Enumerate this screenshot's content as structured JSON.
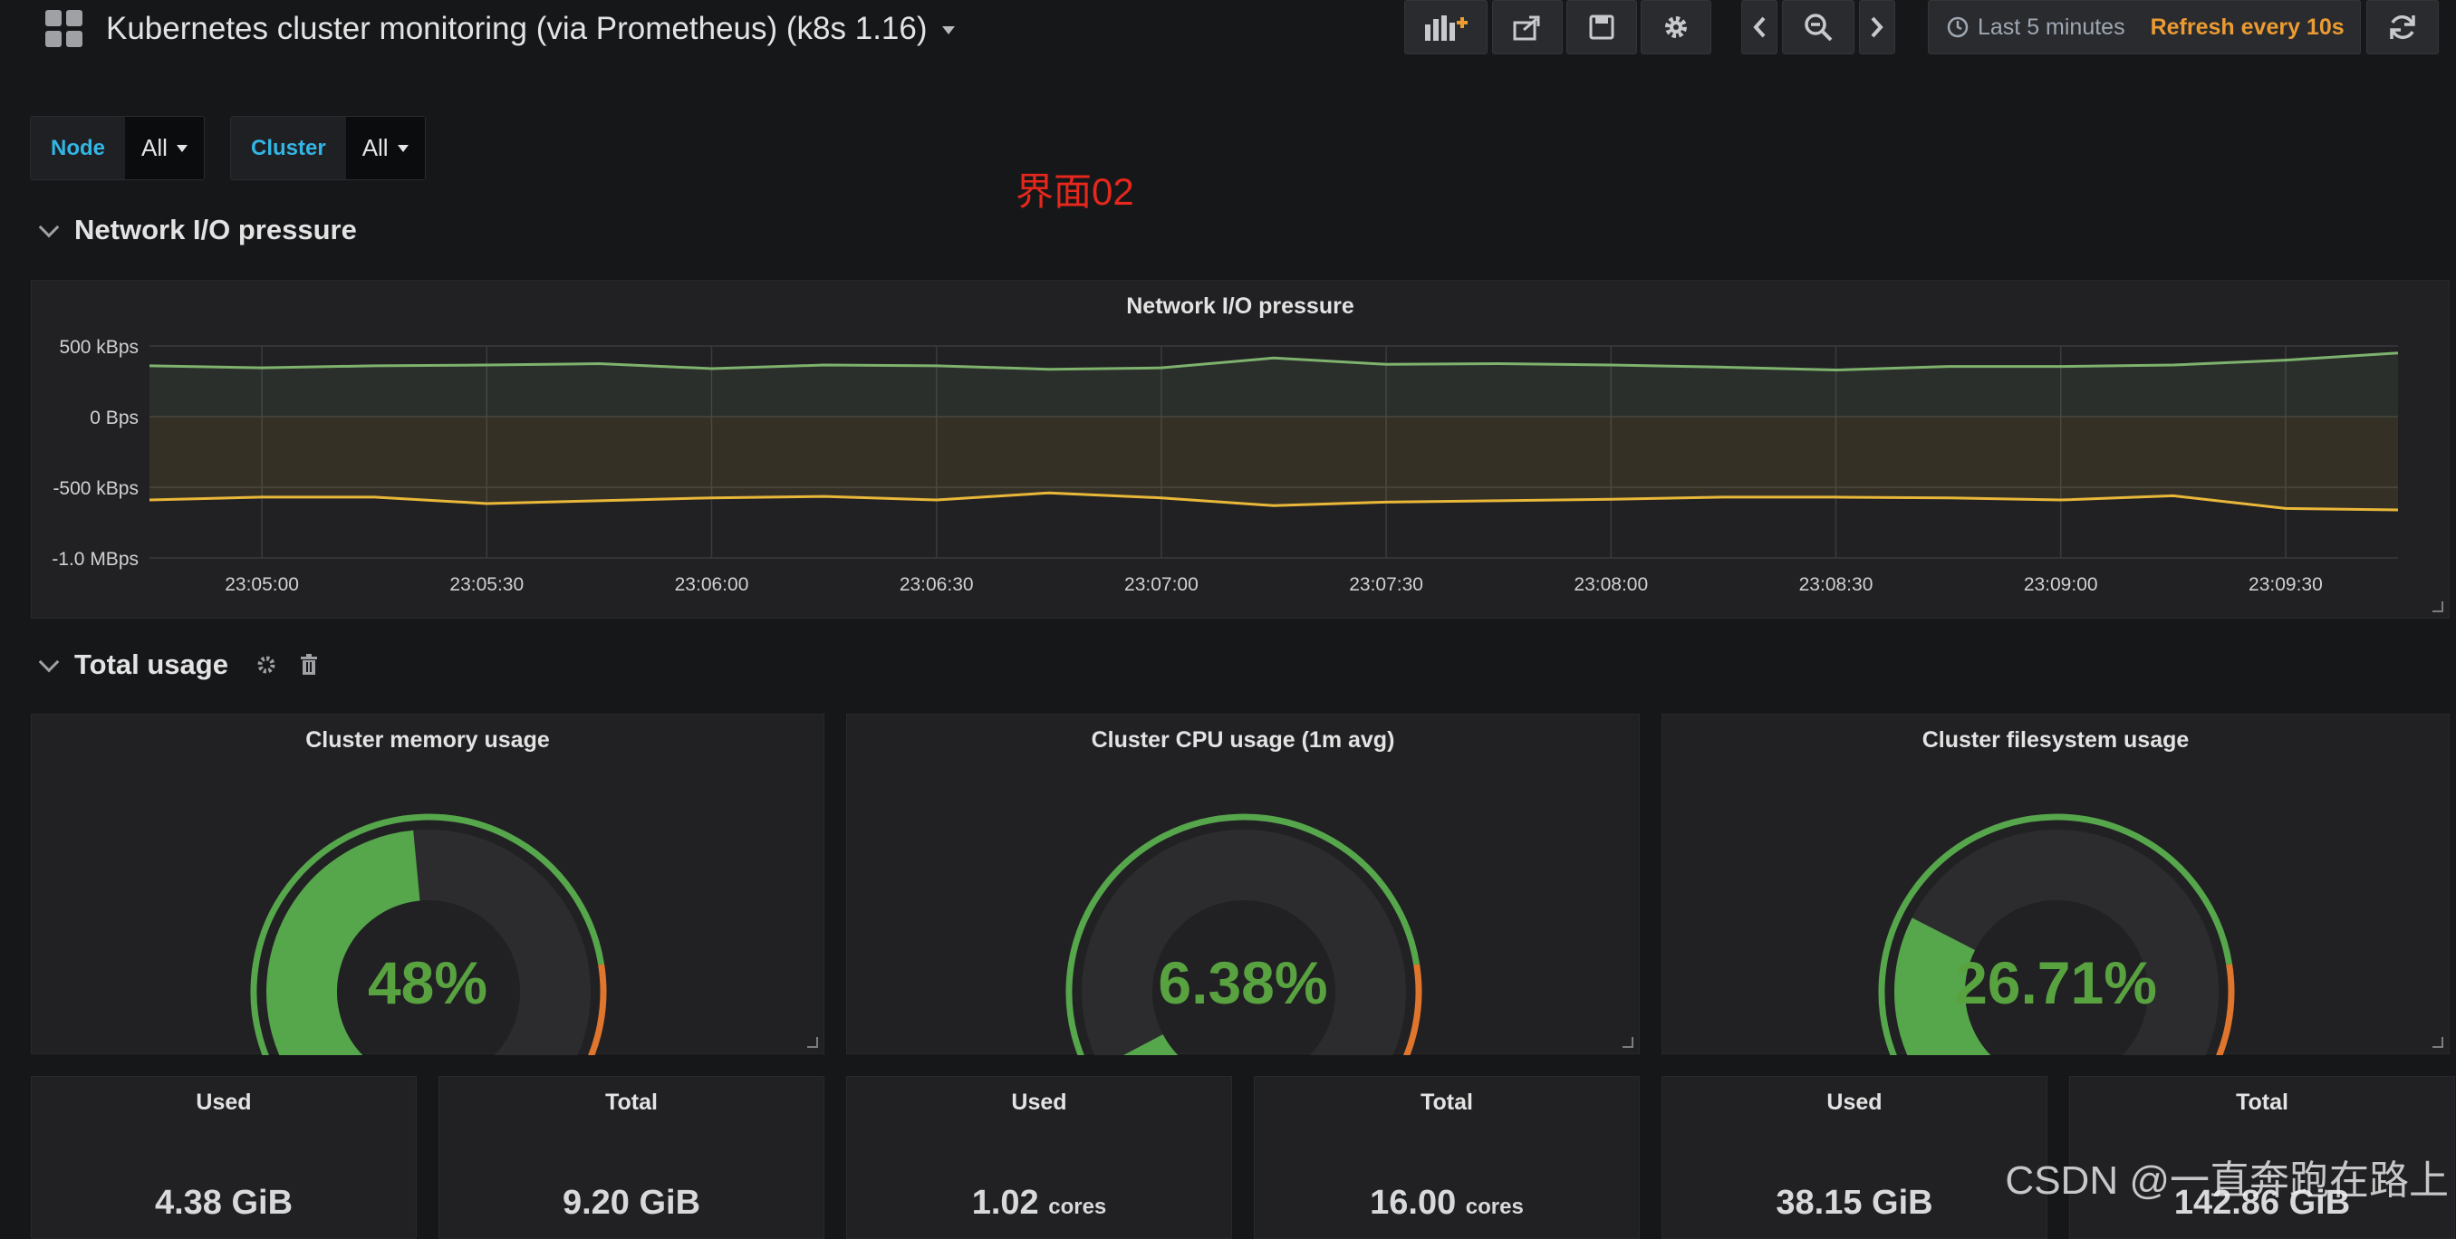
{
  "navbar": {
    "title": "Kubernetes cluster monitoring (via Prometheus) (k8s 1.16)",
    "time_range": "Last 5 minutes",
    "refresh": "Refresh every 10s"
  },
  "variables": [
    {
      "label": "Node",
      "value": "All"
    },
    {
      "label": "Cluster",
      "value": "All"
    }
  ],
  "annotation": "界面02",
  "rows": {
    "network": "Network I/O pressure",
    "total": "Total usage"
  },
  "chart_data": {
    "type": "area",
    "title": "Network I/O pressure",
    "x": [
      "23:04:45",
      "23:05:00",
      "23:05:15",
      "23:05:30",
      "23:05:45",
      "23:06:00",
      "23:06:15",
      "23:06:30",
      "23:06:45",
      "23:07:00",
      "23:07:15",
      "23:07:30",
      "23:07:45",
      "23:08:00",
      "23:08:15",
      "23:08:30",
      "23:08:45",
      "23:09:00",
      "23:09:15",
      "23:09:30",
      "23:09:45"
    ],
    "x_tick_labels": [
      "23:05:00",
      "23:05:30",
      "23:06:00",
      "23:06:30",
      "23:07:00",
      "23:07:30",
      "23:08:00",
      "23:08:30",
      "23:09:00",
      "23:09:30"
    ],
    "y_tick_labels": [
      "500 kBps",
      "0 Bps",
      "-500 kBps",
      "-1.0 MBps"
    ],
    "ylim": [
      -1000,
      500
    ],
    "yunit": "kBps",
    "grid": true,
    "legend": "none",
    "series": [
      {
        "color": "#7eb26d",
        "values": [
          360,
          345,
          360,
          365,
          375,
          340,
          365,
          360,
          335,
          345,
          415,
          370,
          375,
          365,
          350,
          330,
          355,
          355,
          365,
          400,
          450
        ]
      },
      {
        "color": "#eab839",
        "values": [
          -590,
          -570,
          -570,
          -615,
          -595,
          -575,
          -565,
          -590,
          -540,
          -575,
          -630,
          -605,
          -595,
          -585,
          -570,
          -570,
          -575,
          -590,
          -560,
          -650,
          -660
        ]
      }
    ]
  },
  "gauges": [
    {
      "title": "Cluster memory usage",
      "value": 48,
      "display": "48%"
    },
    {
      "title": "Cluster CPU usage (1m avg)",
      "value": 6.38,
      "display": "6.38%"
    },
    {
      "title": "Cluster filesystem usage",
      "value": 26.71,
      "display": "26.71%"
    }
  ],
  "gauge_colors": {
    "ok": "#56a64b",
    "warn": "#e0752d",
    "crit": "#e02f44",
    "track": "#2c2c2f"
  },
  "stats": [
    {
      "title": "Used",
      "value": "4.38 GiB",
      "unit": ""
    },
    {
      "title": "Total",
      "value": "9.20 GiB",
      "unit": ""
    },
    {
      "title": "Used",
      "value": "1.02",
      "unit": "cores"
    },
    {
      "title": "Total",
      "value": "16.00",
      "unit": "cores"
    },
    {
      "title": "Used",
      "value": "38.15 GiB",
      "unit": ""
    },
    {
      "title": "Total",
      "value": "142.86 GiB",
      "unit": ""
    }
  ],
  "watermark": "CSDN @一直奔跑在路上"
}
